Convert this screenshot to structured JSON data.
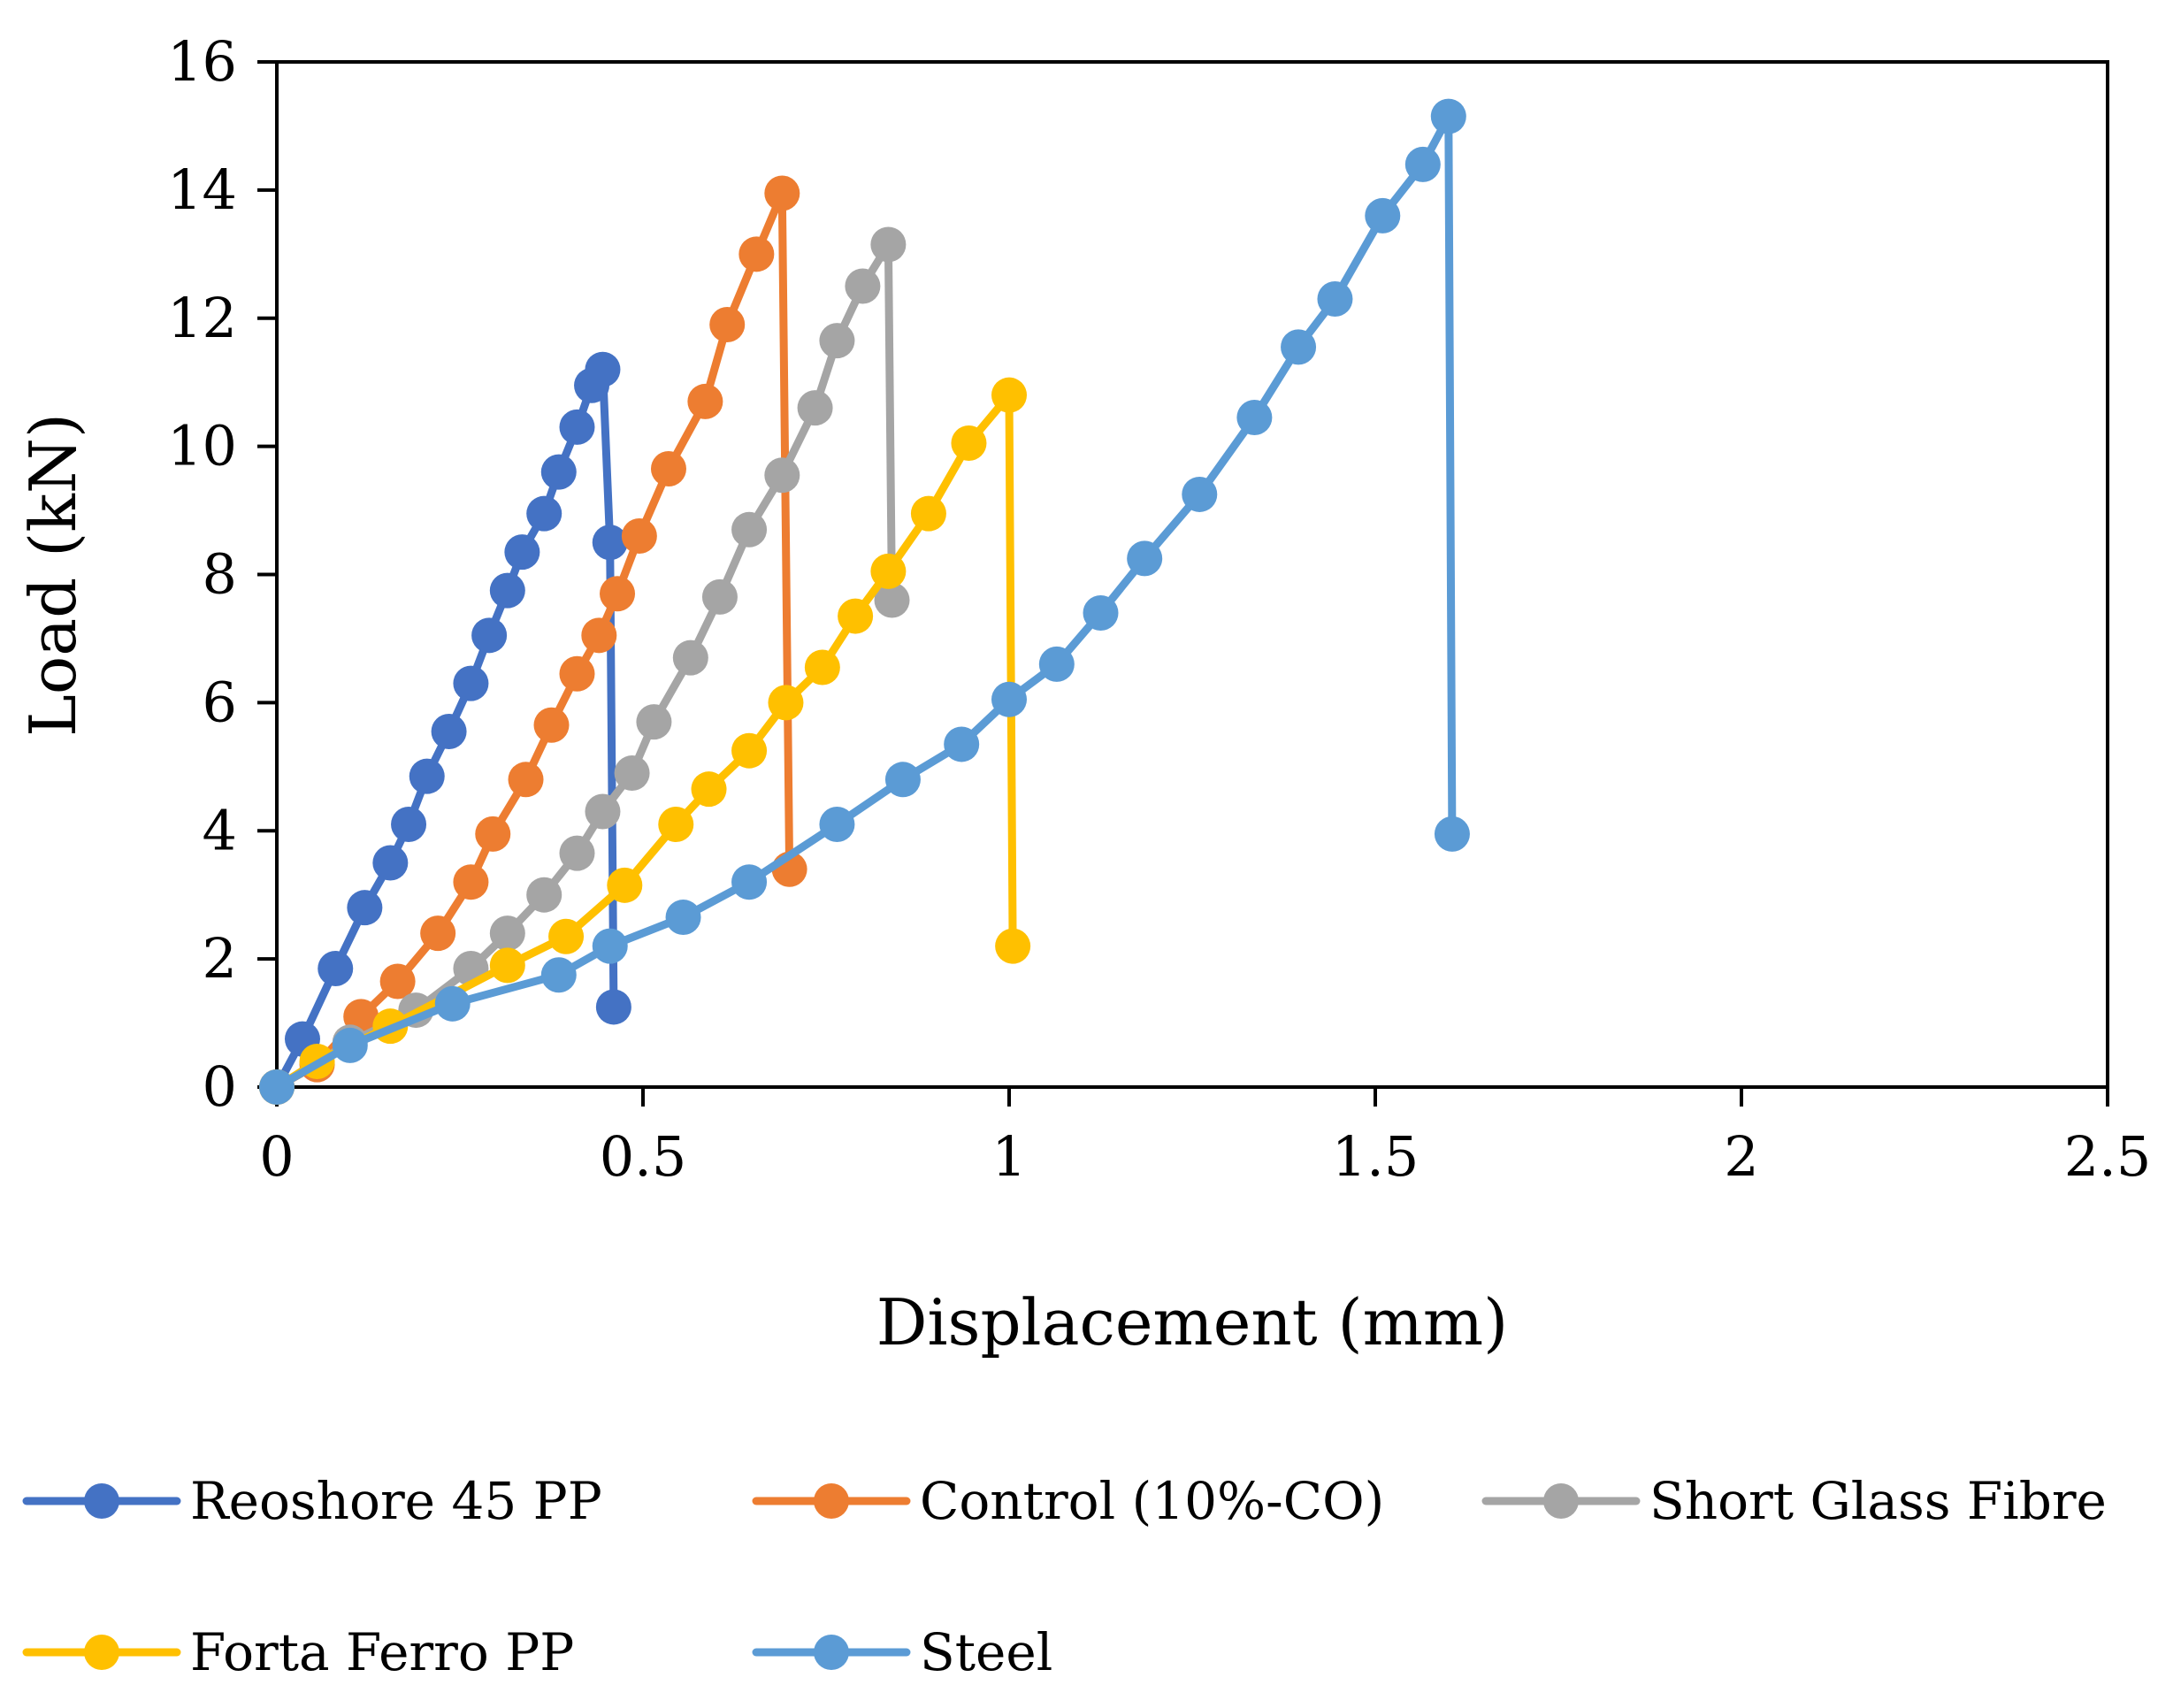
{
  "chart_data": {
    "type": "line",
    "title": "",
    "xlabel": "Displacement (mm)",
    "ylabel": "Load (kN)",
    "xlim": [
      0,
      2.5
    ],
    "ylim": [
      0,
      16
    ],
    "xticks": [
      0,
      0.5,
      1,
      1.5,
      2,
      2.5
    ],
    "xtick_labels": [
      "0",
      "0.5",
      "1",
      "1.5",
      "2",
      "2.5"
    ],
    "yticks": [
      0,
      2,
      4,
      6,
      8,
      10,
      12,
      14,
      16
    ],
    "ytick_labels": [
      "0",
      "2",
      "4",
      "6",
      "8",
      "10",
      "12",
      "14",
      "16"
    ],
    "grid": false,
    "legend_position": "bottom",
    "series": [
      {
        "name": "Reoshore 45 PP",
        "color": "#4472C4",
        "x": [
          0,
          0.035,
          0.08,
          0.12,
          0.155,
          0.18,
          0.205,
          0.235,
          0.265,
          0.29,
          0.315,
          0.335,
          0.365,
          0.385,
          0.41,
          0.43,
          0.445,
          0.455,
          0.46
        ],
        "y": [
          0,
          0.75,
          1.85,
          2.8,
          3.5,
          4.1,
          4.85,
          5.55,
          6.3,
          7.05,
          7.75,
          8.35,
          8.95,
          9.6,
          10.3,
          10.95,
          11.2,
          8.5,
          1.25
        ]
      },
      {
        "name": "Control (10%-CO)",
        "color": "#ED7D31",
        "x": [
          0,
          0.055,
          0.115,
          0.165,
          0.22,
          0.265,
          0.295,
          0.34,
          0.375,
          0.41,
          0.44,
          0.465,
          0.495,
          0.535,
          0.585,
          0.615,
          0.655,
          0.69,
          0.7
        ],
        "y": [
          0,
          0.35,
          1.1,
          1.65,
          2.4,
          3.2,
          3.95,
          4.8,
          5.65,
          6.45,
          7.05,
          7.7,
          8.6,
          9.65,
          10.7,
          11.9,
          13.0,
          13.95,
          3.4
        ]
      },
      {
        "name": "Short Glass Fibre",
        "color": "#A5A5A5",
        "x": [
          0,
          0.1,
          0.19,
          0.265,
          0.315,
          0.365,
          0.41,
          0.445,
          0.485,
          0.515,
          0.565,
          0.605,
          0.645,
          0.69,
          0.735,
          0.765,
          0.8,
          0.835,
          0.84
        ],
        "y": [
          0,
          0.7,
          1.2,
          1.85,
          2.4,
          3.0,
          3.65,
          4.3,
          4.9,
          5.7,
          6.7,
          7.65,
          8.7,
          9.55,
          10.6,
          11.65,
          12.5,
          13.15,
          7.6
        ]
      },
      {
        "name": "Forta Ferro PP",
        "color": "#FFC000",
        "x": [
          0,
          0.055,
          0.155,
          0.315,
          0.395,
          0.475,
          0.545,
          0.59,
          0.645,
          0.695,
          0.745,
          0.79,
          0.835,
          0.89,
          0.945,
          1.0,
          1.005
        ],
        "y": [
          0,
          0.4,
          0.95,
          1.9,
          2.35,
          3.15,
          4.1,
          4.65,
          5.25,
          6.0,
          6.55,
          7.35,
          8.05,
          8.95,
          10.05,
          10.8,
          2.2
        ]
      },
      {
        "name": "Steel",
        "color": "#5B9BD5",
        "x": [
          0,
          0.1,
          0.24,
          0.385,
          0.455,
          0.555,
          0.645,
          0.765,
          0.855,
          0.935,
          1.0,
          1.065,
          1.125,
          1.185,
          1.26,
          1.335,
          1.395,
          1.445,
          1.51,
          1.565,
          1.6,
          1.605
        ],
        "y": [
          0,
          0.65,
          1.3,
          1.75,
          2.2,
          2.65,
          3.2,
          4.1,
          4.8,
          5.35,
          6.05,
          6.6,
          7.4,
          8.25,
          9.25,
          10.45,
          11.55,
          12.3,
          13.6,
          14.4,
          15.15,
          3.95
        ]
      }
    ]
  }
}
